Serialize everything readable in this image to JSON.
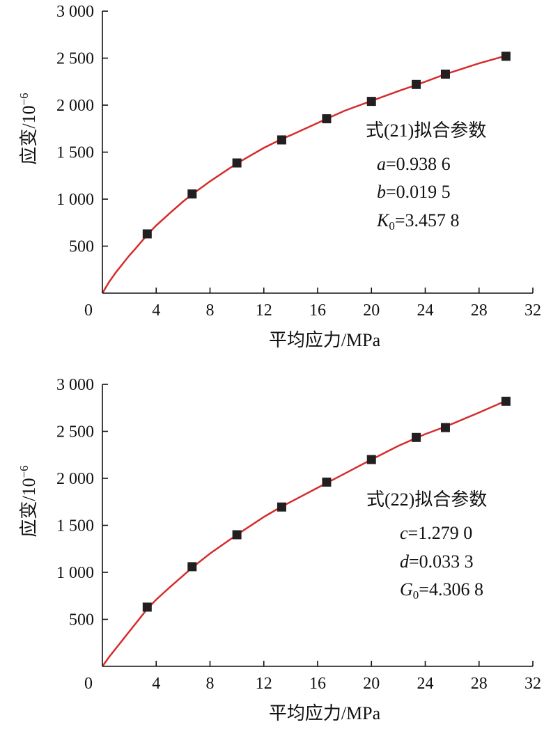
{
  "chart_data": [
    {
      "type": "scatter",
      "xlabel": "平均应力/MPa",
      "ylabel": "应变/10",
      "ylabel_sup": "−6",
      "xlim": [
        0,
        32
      ],
      "ylim": [
        0,
        3000
      ],
      "x_ticks": [
        0,
        4,
        8,
        12,
        16,
        20,
        24,
        28,
        32
      ],
      "x_tick_labels": [
        "0",
        "4",
        "8",
        "12",
        "16",
        "20",
        "24",
        "28",
        "32"
      ],
      "y_ticks": [
        500,
        1000,
        1500,
        2000,
        2500,
        3000
      ],
      "y_tick_labels": [
        "500",
        "1 000",
        "1 500",
        "2 000",
        "2 500",
        "3 000"
      ],
      "grid": false,
      "series": [
        {
          "kind": "points",
          "marker": "square",
          "color": "#231f20",
          "x": [
            3.33,
            6.67,
            10.0,
            13.33,
            16.67,
            20.0,
            23.33,
            25.5,
            30.0
          ],
          "y": [
            630,
            1055,
            1385,
            1630,
            1855,
            2040,
            2220,
            2330,
            2520
          ]
        },
        {
          "kind": "fit-line",
          "color": "#d62b2b",
          "x": [
            0,
            0.5,
            1,
            1.5,
            2,
            2.5,
            3.33,
            4,
            5,
            6,
            6.67,
            8,
            10,
            12,
            13.33,
            14,
            16,
            16.67,
            18,
            20,
            22,
            23.33,
            24,
            25.5,
            28,
            30
          ],
          "y": [
            0,
            120,
            220,
            310,
            400,
            480,
            620,
            720,
            850,
            975,
            1050,
            1190,
            1380,
            1545,
            1640,
            1680,
            1810,
            1855,
            1940,
            2045,
            2150,
            2215,
            2250,
            2330,
            2445,
            2525
          ]
        }
      ],
      "annotation": {
        "title": "式(21)拟合参数",
        "params": [
          {
            "sym": "a",
            "sub": "",
            "value": "=0.938 6"
          },
          {
            "sym": "b",
            "sub": "",
            "value": "=0.019 5"
          },
          {
            "sym": "K",
            "sub": "0",
            "value": "=3.457 8"
          }
        ]
      }
    },
    {
      "type": "scatter",
      "xlabel": "平均应力/MPa",
      "ylabel": "应变/10",
      "ylabel_sup": "−6",
      "xlim": [
        0,
        32
      ],
      "ylim": [
        0,
        3000
      ],
      "x_ticks": [
        0,
        4,
        8,
        12,
        16,
        20,
        24,
        28,
        32
      ],
      "x_tick_labels": [
        "0",
        "4",
        "8",
        "12",
        "16",
        "20",
        "24",
        "28",
        "32"
      ],
      "y_ticks": [
        500,
        1000,
        1500,
        2000,
        2500,
        3000
      ],
      "y_tick_labels": [
        "500",
        "1 000",
        "1 500",
        "2 000",
        "2 500",
        "3 000"
      ],
      "grid": false,
      "series": [
        {
          "kind": "points",
          "marker": "square",
          "color": "#231f20",
          "x": [
            3.33,
            6.67,
            10.0,
            13.33,
            16.67,
            20.0,
            23.33,
            25.5,
            30.0
          ],
          "y": [
            630,
            1060,
            1400,
            1695,
            1960,
            2200,
            2435,
            2540,
            2820
          ]
        },
        {
          "kind": "fit-line",
          "color": "#d62b2b",
          "x": [
            0,
            0.5,
            1,
            1.5,
            2,
            2.5,
            3.33,
            4,
            5,
            6,
            6.67,
            8,
            10,
            12,
            13.33,
            14,
            16,
            16.67,
            18,
            20,
            22,
            23.33,
            24,
            25.5,
            28,
            30
          ],
          "y": [
            0,
            100,
            190,
            280,
            370,
            460,
            610,
            710,
            840,
            965,
            1050,
            1200,
            1400,
            1590,
            1700,
            1750,
            1900,
            1950,
            2050,
            2200,
            2345,
            2430,
            2470,
            2550,
            2700,
            2825
          ]
        }
      ],
      "annotation": {
        "title": "式(22)拟合参数",
        "params": [
          {
            "sym": "c",
            "sub": "",
            "value": "=1.279 0"
          },
          {
            "sym": "d",
            "sub": "",
            "value": "=0.033 3"
          },
          {
            "sym": "G",
            "sub": "0",
            "value": "=4.306 8"
          }
        ]
      }
    }
  ]
}
